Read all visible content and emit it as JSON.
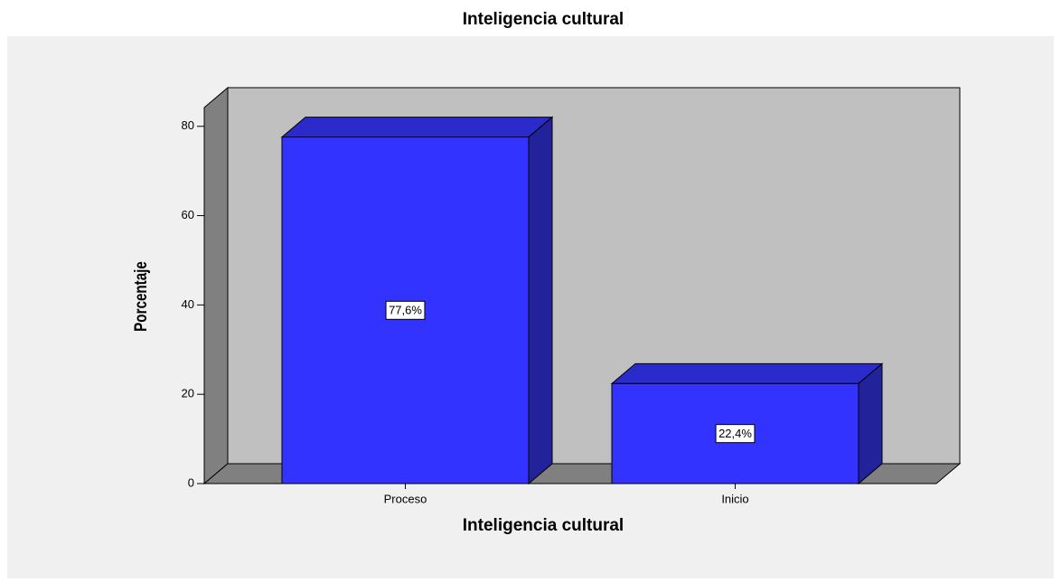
{
  "chart_data": {
    "type": "bar3d",
    "title": "Inteligencia cultural",
    "x_label": "Inteligencia cultural",
    "y_label": "Porcentaje",
    "categories": [
      "Proceso",
      "Inicio"
    ],
    "values": [
      77.6,
      22.4
    ],
    "value_labels": [
      "77,6%",
      "22,4%"
    ],
    "color": "#3333ff",
    "ylim": [
      0,
      84.2
    ],
    "yticks": [
      0,
      20,
      40,
      60,
      80
    ]
  }
}
